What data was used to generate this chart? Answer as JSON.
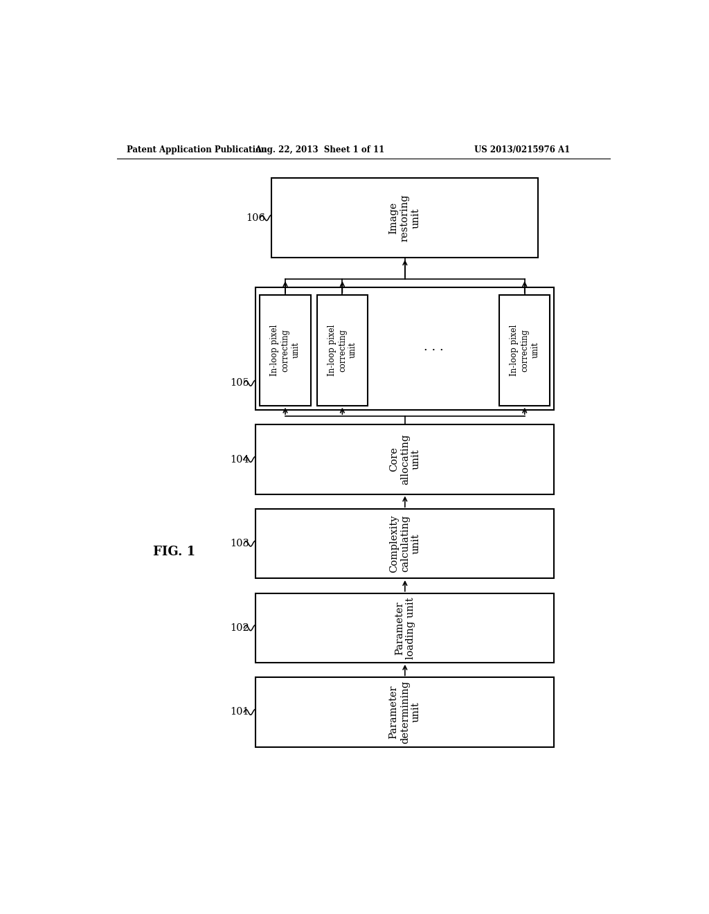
{
  "header_left": "Patent Application Publication",
  "header_center": "Aug. 22, 2013  Sheet 1 of 11",
  "header_right": "US 2013/0215976 A1",
  "figure_label": "FIG. 1",
  "background_color": "#ffffff",
  "line_color": "#000000",
  "text_color": "#000000",
  "box_labels": {
    "101": "Parameter\ndetermining\nunit",
    "102": "Parameter\nloading unit",
    "103": "Complexity\ncalculating\nunit",
    "104": "Core\nallocating\nunit",
    "106": "Image\nrestoring\nunit"
  },
  "parallel_label": "In-loop pixel\ncorrecting\nunit",
  "group_num": "105",
  "dots": "· · ·"
}
